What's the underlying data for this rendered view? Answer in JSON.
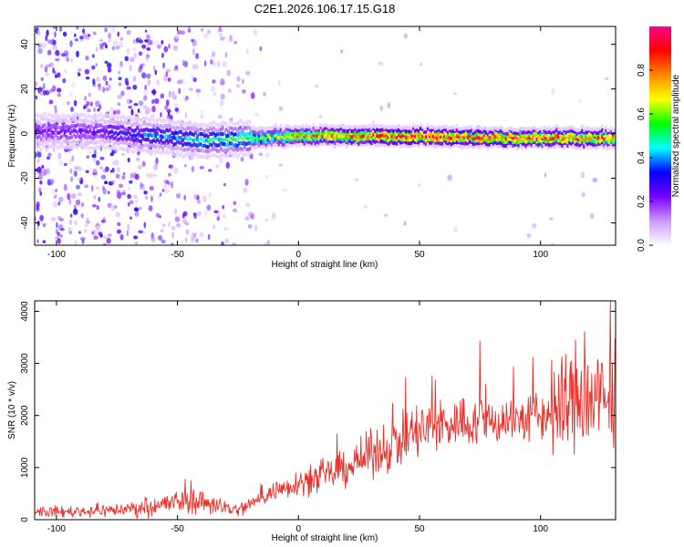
{
  "figure": {
    "title": "C2E1.2026.106.17.15.G18"
  },
  "chart_data": [
    {
      "type": "heatmap",
      "xlabel": "Height of straight line (km)",
      "ylabel": "Frequency (Hz)",
      "xlim": [
        -109,
        131
      ],
      "ylim": [
        -50,
        48
      ],
      "xticks": [
        -100,
        -50,
        0,
        50,
        100
      ],
      "yticks": [
        -40,
        -20,
        0,
        20,
        40
      ],
      "grid": false,
      "description_of_content": "narrow band centered near 0 Hz; amplitude rises with height",
      "colorbar": {
        "label": "Normalized spectral amplitude",
        "range": [
          0,
          1
        ],
        "ticks": [
          0.0,
          0.2,
          0.4,
          0.6,
          0.8
        ],
        "colors": [
          "#ffffff",
          "#cc99ff",
          "#7700ff",
          "#0000ff",
          "#00ffff",
          "#00ff00",
          "#ffff00",
          "#ff8800",
          "#ff0000",
          "#ff0088"
        ]
      },
      "band": {
        "center_hz": [
          {
            "x": -80,
            "y": 1
          },
          {
            "x": -60,
            "y": -1
          },
          {
            "x": -40,
            "y": -3
          },
          {
            "x": -20,
            "y": -2
          },
          {
            "x": 0,
            "y": -1
          },
          {
            "x": 50,
            "y": -1
          },
          {
            "x": 100,
            "y": -2
          },
          {
            "x": 131,
            "y": -2
          }
        ],
        "peak_amplitude": [
          {
            "x": -85,
            "y": 0.25
          },
          {
            "x": -60,
            "y": 0.4
          },
          {
            "x": -35,
            "y": 0.5
          },
          {
            "x": -15,
            "y": 0.6
          },
          {
            "x": 0,
            "y": 0.8
          },
          {
            "x": 50,
            "y": 0.95
          },
          {
            "x": 100,
            "y": 0.9
          },
          {
            "x": 131,
            "y": 0.85
          }
        ]
      }
    },
    {
      "type": "line",
      "xlabel": "Height of straight line (km)",
      "ylabel": "SNR (10 * v/v)",
      "xlim": [
        -109,
        131
      ],
      "ylim": [
        0,
        4200
      ],
      "xticks": [
        -100,
        -50,
        0,
        50,
        100
      ],
      "yticks": [
        0,
        1000,
        2000,
        3000,
        4000
      ],
      "grid": false,
      "series": [
        {
          "color": "#e8302a",
          "x": [
            -109,
            -90,
            -70,
            -55,
            -45,
            -35,
            -25,
            -20,
            -10,
            0,
            10,
            20,
            30,
            40,
            50,
            60,
            70,
            80,
            90,
            100,
            105,
            110,
            115,
            120,
            125,
            131
          ],
          "y": [
            150,
            160,
            200,
            300,
            380,
            300,
            170,
            300,
            550,
            720,
            820,
            1000,
            1250,
            1480,
            1700,
            1820,
            1880,
            1900,
            1920,
            1980,
            2050,
            2200,
            2350,
            2300,
            2250,
            2100
          ]
        }
      ]
    }
  ]
}
